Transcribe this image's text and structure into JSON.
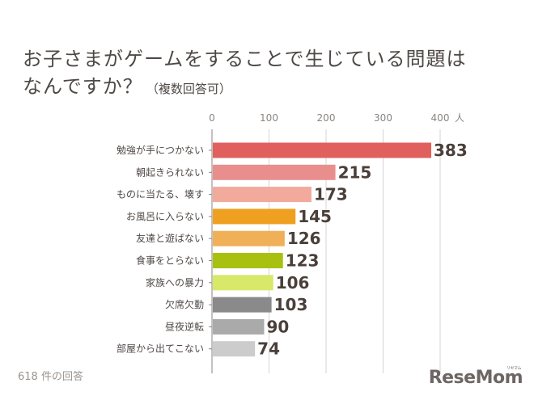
{
  "title": {
    "main": "お子さまがゲームをすることで生じている問題は",
    "line2": "なんですか？",
    "note": "（複数回答可）"
  },
  "footer": {
    "respondents": "618 件の回答"
  },
  "logo": {
    "text": "ReseMom",
    "small_text": "リセマム"
  },
  "colors": {
    "gridline": "#d9d5d2",
    "axis": "#8a8480"
  },
  "chart_data": {
    "type": "bar",
    "orientation": "horizontal",
    "categories": [
      "勉強が手につかない",
      "朝起きられない",
      "ものに当たる、壊す",
      "お風呂に入らない",
      "友達と遊ばない",
      "食事をとらない",
      "家族への暴力",
      "欠席欠勤",
      "昼夜逆転",
      "部屋から出てこない"
    ],
    "values": [
      383,
      215,
      173,
      145,
      126,
      123,
      106,
      103,
      90,
      74
    ],
    "bar_colors": [
      "#e0605d",
      "#e88f8d",
      "#f2aa9c",
      "#f0a020",
      "#f0b058",
      "#a8c010",
      "#d8e868",
      "#8a8a8a",
      "#aaaaaa",
      "#cccccc"
    ],
    "xticks": [
      0,
      100,
      200,
      300,
      400
    ],
    "xtick_labels": [
      "0",
      "100",
      "200",
      "300",
      "400"
    ],
    "xlim": [
      0,
      400
    ],
    "unit": "人",
    "grid": true
  }
}
